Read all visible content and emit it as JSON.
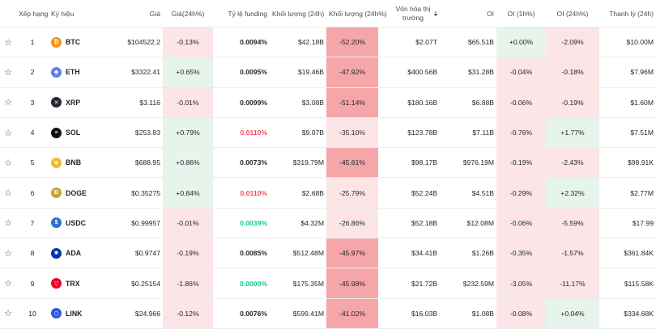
{
  "headers": {
    "star": "",
    "rank": "Xếp hạng",
    "symbol": "Ký hiệu",
    "price": "Giá",
    "change": "Giá(24h%)",
    "funding": "Tỷ lệ funding",
    "vol": "Khối lượng (24h)",
    "volpct": "Khối lượng (24h%)",
    "mcap": "Vốn hóa thị trường",
    "oi": "OI",
    "oi1h": "OI (1h%)",
    "oi24h": "OI (24h%)",
    "liq": "Thanh lý (24h)"
  },
  "rows": [
    {
      "rank": "1",
      "symbol": "BTC",
      "icon": "btc-icon",
      "color": "#f7931a",
      "glyph": "₿",
      "price": "$104522.2",
      "change": "-0.13%",
      "change_tone": "neg",
      "funding": "0.0094%",
      "funding_tone": "normal",
      "vol": "$42.18B",
      "volpct": "-52.20%",
      "mcap": "$2.07T",
      "oi": "$65.51B",
      "oi1h": "+0.00%",
      "oi1h_tone": "pos",
      "oi24h": "-2.09%",
      "oi24h_tone": "neg",
      "liq": "$10.00M"
    },
    {
      "rank": "2",
      "symbol": "ETH",
      "icon": "eth-icon",
      "color": "#627eea",
      "glyph": "◆",
      "price": "$3322.41",
      "change": "+0.65%",
      "change_tone": "pos",
      "funding": "0.0095%",
      "funding_tone": "normal",
      "vol": "$19.46B",
      "volpct": "-47.92%",
      "mcap": "$400.56B",
      "oi": "$31.28B",
      "oi1h": "-0.04%",
      "oi1h_tone": "neg",
      "oi24h": "-0.18%",
      "oi24h_tone": "neg",
      "liq": "$7.96M"
    },
    {
      "rank": "3",
      "symbol": "XRP",
      "icon": "xrp-icon",
      "color": "#23292f",
      "glyph": "✕",
      "price": "$3.116",
      "change": "-0.01%",
      "change_tone": "neg",
      "funding": "0.0099%",
      "funding_tone": "normal",
      "vol": "$3.08B",
      "volpct": "-51.14%",
      "mcap": "$180.16B",
      "oi": "$6.88B",
      "oi1h": "-0.06%",
      "oi1h_tone": "neg",
      "oi24h": "-0.19%",
      "oi24h_tone": "neg",
      "liq": "$1.60M"
    },
    {
      "rank": "4",
      "symbol": "SOL",
      "icon": "sol-icon",
      "color": "#111111",
      "glyph": "≡",
      "price": "$253.83",
      "change": "+0.79%",
      "change_tone": "pos",
      "funding": "0.0110%",
      "funding_tone": "red",
      "vol": "$9.07B",
      "volpct": "-35.10%",
      "mcap": "$123.78B",
      "oi": "$7.11B",
      "oi1h": "-0.76%",
      "oi1h_tone": "neg",
      "oi24h": "+1.77%",
      "oi24h_tone": "pos",
      "liq": "$7.51M"
    },
    {
      "rank": "5",
      "symbol": "BNB",
      "icon": "bnb-icon",
      "color": "#f3ba2f",
      "glyph": "◈",
      "price": "$688.95",
      "change": "+0.86%",
      "change_tone": "pos",
      "funding": "0.0073%",
      "funding_tone": "normal",
      "vol": "$319.79M",
      "volpct": "-45.61%",
      "mcap": "$98.17B",
      "oi": "$976.19M",
      "oi1h": "-0.19%",
      "oi1h_tone": "neg",
      "oi24h": "-2.43%",
      "oi24h_tone": "neg",
      "liq": "$98.91K"
    },
    {
      "rank": "6",
      "symbol": "DOGE",
      "icon": "doge-icon",
      "color": "#c2a633",
      "glyph": "Ð",
      "price": "$0.35275",
      "change": "+0.84%",
      "change_tone": "pos",
      "funding": "0.0110%",
      "funding_tone": "red",
      "vol": "$2.68B",
      "volpct": "-25.79%",
      "mcap": "$52.24B",
      "oi": "$4.51B",
      "oi1h": "-0.29%",
      "oi1h_tone": "neg",
      "oi24h": "+2.32%",
      "oi24h_tone": "pos",
      "liq": "$2.77M"
    },
    {
      "rank": "7",
      "symbol": "USDC",
      "icon": "usdc-icon",
      "color": "#2775ca",
      "glyph": "$",
      "price": "$0.99957",
      "change": "-0.01%",
      "change_tone": "neg",
      "funding": "0.0039%",
      "funding_tone": "green",
      "vol": "$4.32M",
      "volpct": "-26.86%",
      "mcap": "$52.18B",
      "oi": "$12.08M",
      "oi1h": "-0.06%",
      "oi1h_tone": "neg",
      "oi24h": "-5.59%",
      "oi24h_tone": "neg",
      "liq": "$17.99"
    },
    {
      "rank": "8",
      "symbol": "ADA",
      "icon": "ada-icon",
      "color": "#0033ad",
      "glyph": "✺",
      "price": "$0.9747",
      "change": "-0.19%",
      "change_tone": "neg",
      "funding": "0.0085%",
      "funding_tone": "normal",
      "vol": "$512.48M",
      "volpct": "-45.97%",
      "mcap": "$34.41B",
      "oi": "$1.26B",
      "oi1h": "-0.35%",
      "oi1h_tone": "neg",
      "oi24h": "-1.57%",
      "oi24h_tone": "neg",
      "liq": "$361.84K"
    },
    {
      "rank": "9",
      "symbol": "TRX",
      "icon": "trx-icon",
      "color": "#ef0027",
      "glyph": "▽",
      "price": "$0.25154",
      "change": "-1.86%",
      "change_tone": "neg",
      "funding": "0.0000%",
      "funding_tone": "green",
      "vol": "$175.35M",
      "volpct": "-45.98%",
      "mcap": "$21.72B",
      "oi": "$232.59M",
      "oi1h": "-3.05%",
      "oi1h_tone": "neg",
      "oi24h": "-11.17%",
      "oi24h_tone": "neg",
      "liq": "$115.58K"
    },
    {
      "rank": "10",
      "symbol": "LINK",
      "icon": "link-icon",
      "color": "#2a5ada",
      "glyph": "⬡",
      "price": "$24.966",
      "change": "-0.12%",
      "change_tone": "neg",
      "funding": "0.0076%",
      "funding_tone": "normal",
      "vol": "$599.41M",
      "volpct": "-41.02%",
      "mcap": "$16.03B",
      "oi": "$1.08B",
      "oi1h": "-0.08%",
      "oi1h_tone": "neg",
      "oi24h": "+0.04%",
      "oi24h_tone": "pos",
      "liq": "$334.68K"
    }
  ]
}
